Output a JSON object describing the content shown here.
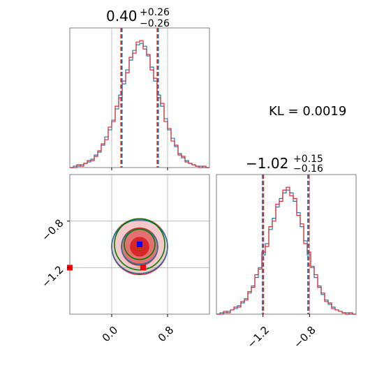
{
  "chart_data": [
    {
      "type": "histogram",
      "panel": "top-left",
      "title": {
        "main": "0.40",
        "upper": "+0.26",
        "lower": "−0.26"
      },
      "xlim": [
        -0.6,
        1.4
      ],
      "x_ticks_gridlines": [
        0.0,
        0.8
      ],
      "quantile_lines": {
        "x": [
          0.14,
          0.66
        ],
        "style": "dashed",
        "colors": [
          "#d62728",
          "#1f77b4"
        ]
      },
      "series": [
        {
          "name": "",
          "color": "#1f77b4",
          "bin_edges": [
            -0.6,
            -0.55,
            -0.5,
            -0.45,
            -0.4,
            -0.35,
            -0.3,
            -0.25,
            -0.2,
            -0.15,
            -0.1,
            -0.05,
            0.0,
            0.05,
            0.1,
            0.15,
            0.2,
            0.25,
            0.3,
            0.35,
            0.4,
            0.45,
            0.5,
            0.55,
            0.6,
            0.65,
            0.7,
            0.75,
            0.8,
            0.85,
            0.9,
            0.95,
            1.0,
            1.05,
            1.1,
            1.15,
            1.2,
            1.25,
            1.3,
            1.35,
            1.4
          ],
          "counts": [
            0,
            1,
            1,
            2,
            3,
            4,
            6,
            9,
            11,
            16,
            22,
            27,
            34,
            42,
            52,
            60,
            70,
            77,
            84,
            88,
            89,
            87,
            80,
            72,
            62,
            52,
            44,
            35,
            27,
            21,
            15,
            10,
            7,
            5,
            3,
            2,
            1,
            1,
            0,
            0
          ]
        },
        {
          "name": "",
          "color": "#d62728",
          "bin_edges": [
            -0.6,
            -0.55,
            -0.5,
            -0.45,
            -0.4,
            -0.35,
            -0.3,
            -0.25,
            -0.2,
            -0.15,
            -0.1,
            -0.05,
            0.0,
            0.05,
            0.1,
            0.15,
            0.2,
            0.25,
            0.3,
            0.35,
            0.4,
            0.45,
            0.5,
            0.55,
            0.6,
            0.65,
            0.7,
            0.75,
            0.8,
            0.85,
            0.9,
            0.95,
            1.0,
            1.05,
            1.1,
            1.15,
            1.2,
            1.25,
            1.3,
            1.35,
            1.4
          ],
          "counts": [
            0,
            0,
            2,
            1,
            3,
            5,
            5,
            8,
            12,
            17,
            20,
            29,
            33,
            44,
            50,
            62,
            68,
            79,
            82,
            90,
            91,
            85,
            81,
            70,
            64,
            50,
            46,
            33,
            28,
            19,
            16,
            9,
            8,
            4,
            3,
            2,
            1,
            0,
            1,
            0
          ]
        }
      ]
    },
    {
      "type": "histogram",
      "panel": "bottom-right",
      "title": {
        "main": "−1.02",
        "upper": "+0.15",
        "lower": "−0.16"
      },
      "xlim": [
        -1.6,
        -0.4
      ],
      "x_ticks": [
        -1.2,
        -0.8
      ],
      "x_tick_labels": [
        "−1.2",
        "−0.8"
      ],
      "quantile_lines": {
        "x": [
          -1.2,
          -0.81
        ],
        "style": "dashed",
        "colors": [
          "#1f77b4",
          "#d62728"
        ]
      },
      "series": [
        {
          "name": "",
          "color": "#1f77b4",
          "bin_edges": [
            -1.6,
            -1.57,
            -1.54,
            -1.51,
            -1.48,
            -1.45,
            -1.42,
            -1.39,
            -1.36,
            -1.33,
            -1.3,
            -1.27,
            -1.24,
            -1.21,
            -1.18,
            -1.15,
            -1.12,
            -1.09,
            -1.06,
            -1.03,
            -1.0,
            -0.97,
            -0.94,
            -0.91,
            -0.88,
            -0.85,
            -0.82,
            -0.79,
            -0.76,
            -0.73,
            -0.7,
            -0.67,
            -0.64,
            -0.61,
            -0.58,
            -0.55,
            -0.52,
            -0.49,
            -0.46,
            -0.43,
            -0.4
          ],
          "counts": [
            0,
            1,
            1,
            2,
            3,
            4,
            6,
            8,
            11,
            15,
            20,
            26,
            33,
            42,
            50,
            60,
            68,
            76,
            82,
            86,
            88,
            86,
            80,
            72,
            62,
            52,
            42,
            34,
            26,
            20,
            14,
            10,
            7,
            5,
            3,
            2,
            1,
            1,
            0,
            0
          ]
        },
        {
          "name": "",
          "color": "#d62728",
          "bin_edges": [
            -1.6,
            -1.57,
            -1.54,
            -1.51,
            -1.48,
            -1.45,
            -1.42,
            -1.39,
            -1.36,
            -1.33,
            -1.3,
            -1.27,
            -1.24,
            -1.21,
            -1.18,
            -1.15,
            -1.12,
            -1.09,
            -1.06,
            -1.03,
            -1.0,
            -0.97,
            -0.94,
            -0.91,
            -0.88,
            -0.85,
            -0.82,
            -0.79,
            -0.76,
            -0.73,
            -0.7,
            -0.67,
            -0.64,
            -0.61,
            -0.58,
            -0.55,
            -0.52,
            -0.49,
            -0.46,
            -0.43,
            -0.4
          ],
          "counts": [
            0,
            0,
            2,
            1,
            3,
            5,
            5,
            9,
            10,
            16,
            19,
            28,
            32,
            44,
            48,
            62,
            66,
            78,
            80,
            88,
            90,
            84,
            82,
            70,
            64,
            50,
            44,
            33,
            28,
            19,
            15,
            9,
            8,
            4,
            3,
            2,
            1,
            0,
            1,
            0
          ]
        }
      ]
    },
    {
      "type": "contour",
      "panel": "bottom-left",
      "xlim": [
        -0.6,
        1.4
      ],
      "ylim": [
        -1.6,
        -0.4
      ],
      "x_ticks": [
        0.0,
        0.8
      ],
      "x_tick_labels": [
        "0.0",
        "0.8"
      ],
      "y_ticks": [
        -0.8,
        -1.2
      ],
      "y_tick_labels": [
        "−0.8",
        "−1.2"
      ],
      "contours": [
        {
          "color": "#d62728",
          "filled": true,
          "center": [
            0.4,
            -1.02
          ],
          "sigma_x": [
            0.13,
            0.26,
            0.4
          ],
          "sigma_y": [
            0.08,
            0.16,
            0.24
          ]
        },
        {
          "color": "#1f77b4",
          "filled": false,
          "center": [
            0.4,
            -1.02
          ],
          "sigma_x": [
            0.26,
            0.4
          ],
          "sigma_y": [
            0.15,
            0.23
          ]
        },
        {
          "color": "#008000",
          "filled": false,
          "center": [
            0.4,
            -1.0
          ],
          "sigma_x": [
            0.22,
            0.36
          ],
          "sigma_y": [
            0.13,
            0.22
          ]
        }
      ],
      "markers": [
        {
          "color": "#0000ff",
          "x": 0.4,
          "y": -1.0,
          "shape": "square"
        },
        {
          "color": "#ff0000",
          "x": 0.45,
          "y": -1.2,
          "shape": "square"
        },
        {
          "color": "#ff0000",
          "x": -0.6,
          "y": -1.2,
          "shape": "square"
        }
      ],
      "grid": true
    }
  ],
  "kl_text": "KL = 0.0019"
}
